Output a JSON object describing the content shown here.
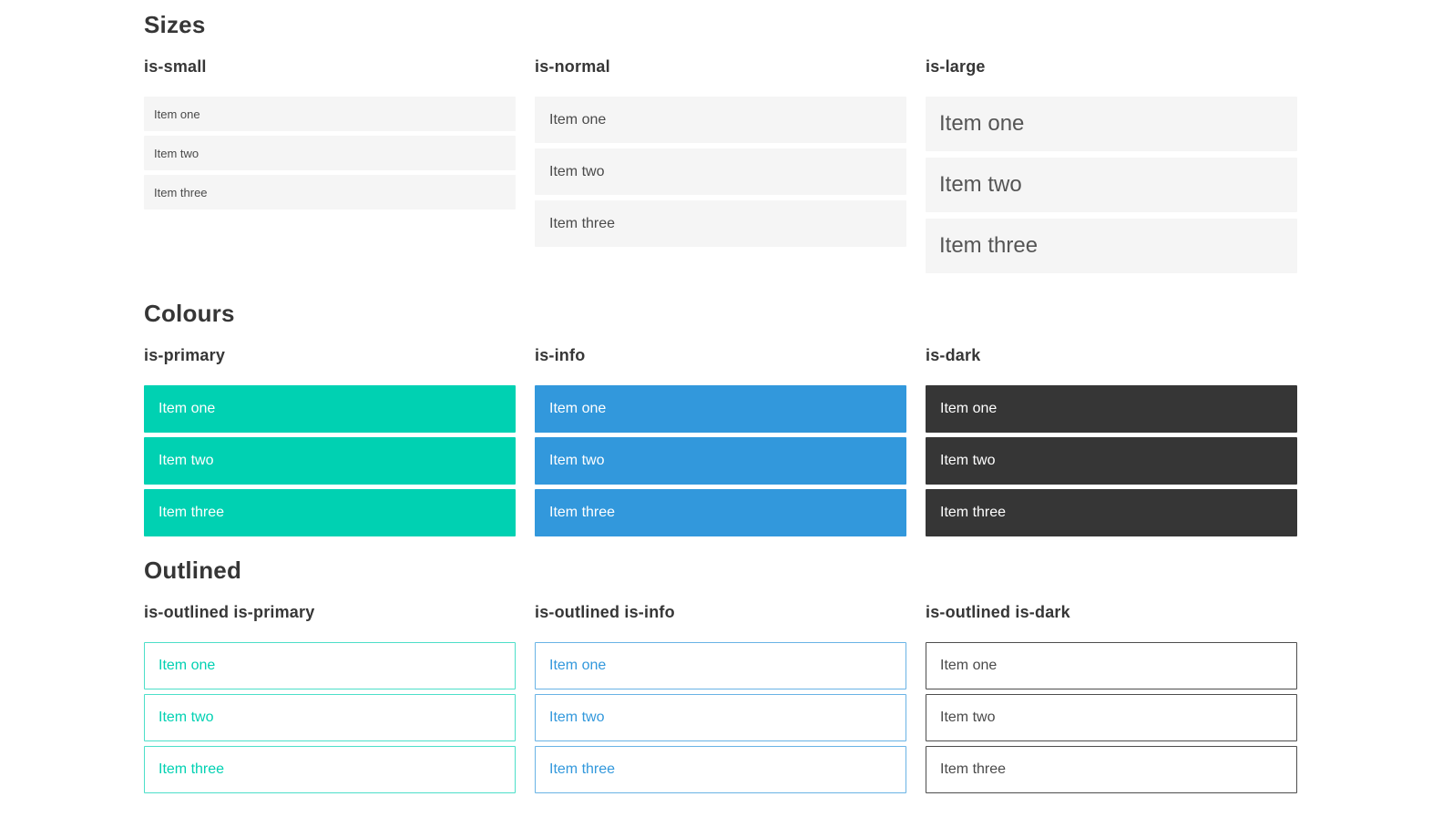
{
  "page": {
    "sections": [
      {
        "title": "Sizes",
        "slug": "sizes",
        "columns": [
          {
            "heading": "is-small",
            "variant": "size-small",
            "items": [
              "Item one",
              "Item two",
              "Item three"
            ]
          },
          {
            "heading": "is-normal",
            "variant": "size-normal",
            "items": [
              "Item one",
              "Item two",
              "Item three"
            ]
          },
          {
            "heading": "is-large",
            "variant": "size-large",
            "items": [
              "Item one",
              "Item two",
              "Item three"
            ]
          }
        ]
      },
      {
        "title": "Colours",
        "slug": "colours",
        "columns": [
          {
            "heading": "is-primary",
            "variant": "color-primary",
            "items": [
              "Item one",
              "Item two",
              "Item three"
            ]
          },
          {
            "heading": "is-info",
            "variant": "color-info",
            "items": [
              "Item one",
              "Item two",
              "Item three"
            ]
          },
          {
            "heading": "is-dark",
            "variant": "color-dark",
            "items": [
              "Item one",
              "Item two",
              "Item three"
            ]
          }
        ]
      },
      {
        "title": "Outlined",
        "slug": "outlined",
        "columns": [
          {
            "heading": "is-outlined is-primary",
            "variant": "outlined-primary",
            "items": [
              "Item one",
              "Item two",
              "Item three"
            ]
          },
          {
            "heading": "is-outlined is-info",
            "variant": "outlined-info",
            "items": [
              "Item one",
              "Item two",
              "Item three"
            ]
          },
          {
            "heading": "is-outlined is-dark",
            "variant": "outlined-dark",
            "items": [
              "Item one",
              "Item two",
              "Item three"
            ]
          }
        ]
      }
    ]
  },
  "colors": {
    "primary": "#00d1b2",
    "primary_border": "#4ddfc9",
    "info": "#3298dc",
    "info_border": "#69b3e5",
    "dark": "#363636",
    "dark_border": "#4d4d4d",
    "light_item_bg": "#f5f5f5",
    "body_text": "#4a4a4a",
    "heading_text": "#363636",
    "white": "#ffffff"
  }
}
